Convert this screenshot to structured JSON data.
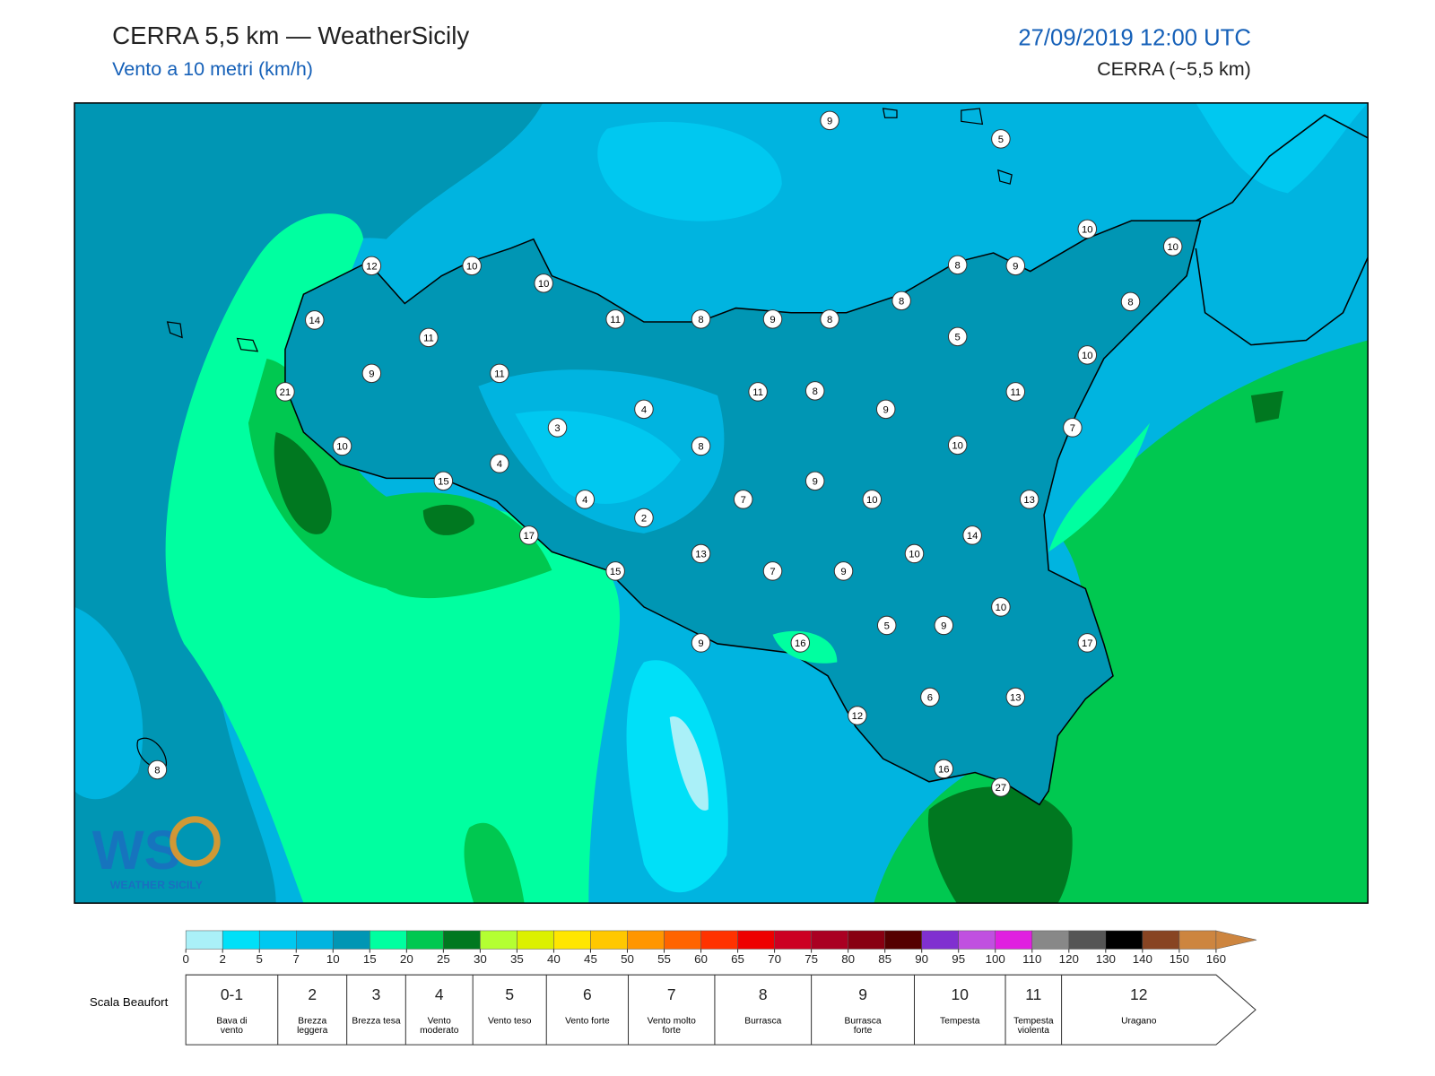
{
  "header": {
    "title": "CERRA 5,5 km — WeatherSicily",
    "subtitle": "Vento a 10 metri (km/h)",
    "datetime": "27/09/2019 12:00 UTC",
    "model": "CERRA (~5,5 km)"
  },
  "stations": {
    "values": [
      9,
      5,
      10,
      10,
      12,
      10,
      10,
      8,
      9,
      8,
      14,
      11,
      11,
      8,
      9,
      8,
      8,
      5,
      10,
      9,
      11,
      21,
      11,
      8,
      11,
      4,
      9,
      3,
      7,
      10,
      8,
      10,
      4,
      15,
      9,
      4,
      7,
      10,
      13,
      2,
      17,
      14,
      13,
      10,
      15,
      7,
      9,
      10,
      5,
      9,
      9,
      16,
      17,
      6,
      13,
      12,
      8,
      16,
      27
    ]
  },
  "colorbar": {
    "ticks": [
      0,
      2,
      5,
      7,
      10,
      15,
      20,
      25,
      30,
      35,
      40,
      45,
      50,
      55,
      60,
      65,
      70,
      75,
      80,
      85,
      90,
      95,
      100,
      110,
      120,
      130,
      140,
      150,
      160
    ],
    "colors": [
      "#aaf0f8",
      "#00e0f8",
      "#00c8f0",
      "#00b4e0",
      "#0096b4",
      "#00ffa0",
      "#00c850",
      "#007820",
      "#b4ff32",
      "#dcf000",
      "#ffe600",
      "#ffc800",
      "#ff9600",
      "#ff6400",
      "#ff3200",
      "#ee0000",
      "#cc0022",
      "#aa0022",
      "#880011",
      "#550000",
      "#8030d0",
      "#c050e0",
      "#e020e0",
      "#888888",
      "#555555",
      "#000000",
      "#884422",
      "#cd853f"
    ],
    "extend_color": "#cd853f"
  },
  "beaufort": {
    "label": "Scala Beaufort",
    "levels": [
      {
        "force": "0-1",
        "name": "Bava di vento"
      },
      {
        "force": "2",
        "name": "Brezza leggera"
      },
      {
        "force": "3",
        "name": "Brezza tesa"
      },
      {
        "force": "4",
        "name": "Vento moderato"
      },
      {
        "force": "5",
        "name": "Vento teso"
      },
      {
        "force": "6",
        "name": "Vento forte"
      },
      {
        "force": "7",
        "name": "Vento molto forte"
      },
      {
        "force": "8",
        "name": "Burrasca"
      },
      {
        "force": "9",
        "name": "Burrasca forte"
      },
      {
        "force": "10",
        "name": "Tempesta"
      },
      {
        "force": "11",
        "name": "Tempesta violenta"
      },
      {
        "force": "12",
        "name": "Uragano"
      }
    ]
  },
  "logo": "WEATHER SICILY"
}
